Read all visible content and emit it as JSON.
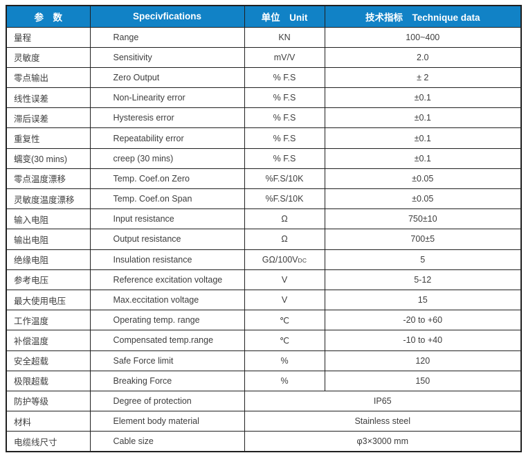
{
  "colors": {
    "header_bg": "#1182c6",
    "header_text": "#ffffff",
    "border": "#1f1f1f",
    "body_text": "#3d3d3d",
    "page_bg": "#ffffff"
  },
  "table": {
    "headers": {
      "parameter": "参　数",
      "specifications": "Specivfications",
      "unit": "单位　Unit",
      "technique_data": "技术指标　Technique data"
    },
    "rows": [
      {
        "param_cn": "量程",
        "spec_en": "Range",
        "unit": "KN",
        "value": "100~400"
      },
      {
        "param_cn": "灵敏度",
        "spec_en": "Sensitivity",
        "unit": "mV/V",
        "value": "2.0"
      },
      {
        "param_cn": "零点输出",
        "spec_en": "Zero Output",
        "unit": "% F.S",
        "value": "± 2"
      },
      {
        "param_cn": "线性误差",
        "spec_en": "Non-Linearity error",
        "unit": "% F.S",
        "value": "±0.1"
      },
      {
        "param_cn": "滞后误差",
        "spec_en": "Hysteresis error",
        "unit": "% F.S",
        "value": "±0.1"
      },
      {
        "param_cn": "重复性",
        "spec_en": "Repeatability error",
        "unit": "% F.S",
        "value": "±0.1"
      },
      {
        "param_cn": "蠕变(30 mins)",
        "spec_en": "creep (30 mins)",
        "unit": "% F.S",
        "value": "±0.1"
      },
      {
        "param_cn": "零点温度漂移",
        "spec_en": "Temp. Coef.on Zero",
        "unit": "%F.S/10K",
        "value": "±0.05"
      },
      {
        "param_cn": "灵敏度温度漂移",
        "spec_en": "Temp. Coef.on Span",
        "unit": "%F.S/10K",
        "value": "±0.05"
      },
      {
        "param_cn": "输入电阻",
        "spec_en": "Input resistance",
        "unit": "Ω",
        "value": "750±10"
      },
      {
        "param_cn": "输出电阻",
        "spec_en": "Output resistance",
        "unit": "Ω",
        "value": "700±5"
      },
      {
        "param_cn": "绝缘电阻",
        "spec_en": "Insulation resistance",
        "unit": "GΩ/100V",
        "unit_sub": "DC",
        "value": "5"
      },
      {
        "param_cn": "参考电压",
        "spec_en": "Reference excitation voltage",
        "unit": "V",
        "value": "5-12"
      },
      {
        "param_cn": "最大使用电压",
        "spec_en": "Max.eccitation voltage",
        "unit": "V",
        "value": "15"
      },
      {
        "param_cn": "工作温度",
        "spec_en": "Operating temp. range",
        "unit": "℃",
        "value": "-20 to +60"
      },
      {
        "param_cn": "补偿温度",
        "spec_en": "Compensated temp.range",
        "unit": "℃",
        "value": "-10 to +40"
      },
      {
        "param_cn": "安全超载",
        "spec_en": "Safe Force limit",
        "unit": "%",
        "value": "120"
      },
      {
        "param_cn": "极限超载",
        "spec_en": "Breaking Force",
        "unit": "%",
        "value": "150"
      },
      {
        "param_cn": "防护等级",
        "spec_en": "Degree of protection",
        "merged": true,
        "value": "IP65"
      },
      {
        "param_cn": "材料",
        "spec_en": "Element body material",
        "merged": true,
        "value": "Stainless steel"
      },
      {
        "param_cn": "电缆线尺寸",
        "spec_en": "Cable size",
        "merged": true,
        "value": "φ3×3000 mm"
      }
    ]
  }
}
